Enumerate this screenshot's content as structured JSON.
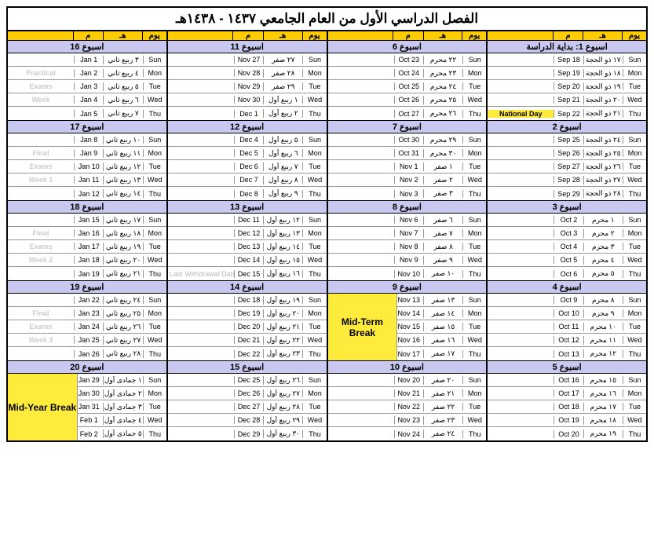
{
  "title": "الفصل الدراسي الأول من العام الجامعي ١٤٣٧ - ١٤٣٨هـ",
  "col_headers": {
    "c1": "",
    "c2": "م",
    "c3": "هـ",
    "c4": "يوم"
  },
  "days": [
    "Sun",
    "Mon",
    "Tue",
    "Wed",
    "Thu"
  ],
  "columns": [
    {
      "blocks": [
        {
          "header": "اسبوع 1: بداية الدراسة",
          "rows": [
            {
              "lbl": "",
              "g": "Sep 18",
              "h": "١٧ ذو الحجة",
              "d": "Sun"
            },
            {
              "lbl": "",
              "g": "Sep 19",
              "h": "١٨ ذو الحجة",
              "d": "Mon"
            },
            {
              "lbl": "",
              "g": "Sep 20",
              "h": "١٩ ذو الحجة",
              "d": "Tue"
            },
            {
              "lbl": "",
              "g": "Sep 21",
              "h": "٢٠ ذو الحجة",
              "d": "Wed"
            },
            {
              "lbl": "National Day",
              "g": "Sep 22",
              "h": "٢١ ذو الحجة",
              "d": "Thu",
              "hl": true
            }
          ]
        },
        {
          "header": "اسبوع 2",
          "rows": [
            {
              "lbl": "",
              "g": "Sep 25",
              "h": "٢٤ ذو الحجة",
              "d": "Sun"
            },
            {
              "lbl": "",
              "g": "Sep 26",
              "h": "٢٥ ذو الحجة",
              "d": "Mon"
            },
            {
              "lbl": "",
              "g": "Sep 27",
              "h": "٢٦ ذو الحجة",
              "d": "Tue"
            },
            {
              "lbl": "",
              "g": "Sep 28",
              "h": "٢٧ ذو الحجة",
              "d": "Wed"
            },
            {
              "lbl": "",
              "g": "Sep 29",
              "h": "٢٨ ذو الحجة",
              "d": "Thu"
            }
          ]
        },
        {
          "header": "اسبوع 3",
          "rows": [
            {
              "lbl": "",
              "g": "Oct 2",
              "h": "١ محرم",
              "d": "Sun"
            },
            {
              "lbl": "",
              "g": "Oct 3",
              "h": "٢ محرم",
              "d": "Mon"
            },
            {
              "lbl": "",
              "g": "Oct 4",
              "h": "٣ محرم",
              "d": "Tue"
            },
            {
              "lbl": "",
              "g": "Oct 5",
              "h": "٤ محرم",
              "d": "Wed"
            },
            {
              "lbl": "",
              "g": "Oct 6",
              "h": "٥ محرم",
              "d": "Thu"
            }
          ]
        },
        {
          "header": "اسبوع 4",
          "rows": [
            {
              "lbl": "",
              "g": "Oct 9",
              "h": "٨ محرم",
              "d": "Sun"
            },
            {
              "lbl": "",
              "g": "Oct 10",
              "h": "٩ محرم",
              "d": "Mon"
            },
            {
              "lbl": "",
              "g": "Oct 11",
              "h": "١٠ محرم",
              "d": "Tue"
            },
            {
              "lbl": "",
              "g": "Oct 12",
              "h": "١١ محرم",
              "d": "Wed"
            },
            {
              "lbl": "",
              "g": "Oct 13",
              "h": "١٢ محرم",
              "d": "Thu"
            }
          ]
        },
        {
          "header": "اسبوع 5",
          "rows": [
            {
              "lbl": "",
              "g": "Oct 16",
              "h": "١٥ محرم",
              "d": "Sun"
            },
            {
              "lbl": "",
              "g": "Oct 17",
              "h": "١٦ محرم",
              "d": "Mon"
            },
            {
              "lbl": "",
              "g": "Oct 18",
              "h": "١٧ محرم",
              "d": "Tue"
            },
            {
              "lbl": "",
              "g": "Oct 19",
              "h": "١٨ محرم",
              "d": "Wed"
            },
            {
              "lbl": "",
              "g": "Oct 20",
              "h": "١٩ محرم",
              "d": "Thu"
            }
          ]
        }
      ]
    },
    {
      "blocks": [
        {
          "header": "اسبوع 6",
          "rows": [
            {
              "lbl": "",
              "g": "Oct 23",
              "h": "٢٢ محرم",
              "d": "Sun"
            },
            {
              "lbl": "",
              "g": "Oct 24",
              "h": "٢٣ محرم",
              "d": "Mon"
            },
            {
              "lbl": "",
              "g": "Oct 25",
              "h": "٢٤ محرم",
              "d": "Tue"
            },
            {
              "lbl": "",
              "g": "Oct 26",
              "h": "٢٥ محرم",
              "d": "Wed"
            },
            {
              "lbl": "",
              "g": "Oct 27",
              "h": "٢٦ محرم",
              "d": "Thu"
            }
          ]
        },
        {
          "header": "اسبوع 7",
          "rows": [
            {
              "lbl": "",
              "g": "Oct 30",
              "h": "٢٩ محرم",
              "d": "Sun"
            },
            {
              "lbl": "",
              "g": "Oct 31",
              "h": "٣٠ محرم",
              "d": "Mon"
            },
            {
              "lbl": "",
              "g": "Nov 1",
              "h": "١ صفر",
              "d": "Tue"
            },
            {
              "lbl": "",
              "g": "Nov 2",
              "h": "٢ صفر",
              "d": "Wed"
            },
            {
              "lbl": "",
              "g": "Nov 3",
              "h": "٣ صفر",
              "d": "Thu"
            }
          ]
        },
        {
          "header": "اسبوع 8",
          "rows": [
            {
              "lbl": "",
              "g": "Nov 6",
              "h": "٦ صفر",
              "d": "Sun"
            },
            {
              "lbl": "",
              "g": "Nov 7",
              "h": "٧ صفر",
              "d": "Mon"
            },
            {
              "lbl": "",
              "g": "Nov 8",
              "h": "٨ صفر",
              "d": "Tue"
            },
            {
              "lbl": "",
              "g": "Nov 9",
              "h": "٩ صفر",
              "d": "Wed"
            },
            {
              "lbl": "",
              "g": "Nov 10",
              "h": "١٠ صفر",
              "d": "Thu"
            }
          ]
        },
        {
          "header": "اسبوع 9",
          "big": "Mid-Term Break",
          "rows": [
            {
              "lbl": "",
              "g": "Nov 13",
              "h": "١٣ صفر",
              "d": "Sun"
            },
            {
              "lbl": "",
              "g": "Nov 14",
              "h": "١٤ صفر",
              "d": "Mon"
            },
            {
              "lbl": "",
              "g": "Nov 15",
              "h": "١٥ صفر",
              "d": "Tue"
            },
            {
              "lbl": "",
              "g": "Nov 16",
              "h": "١٦ صفر",
              "d": "Wed"
            },
            {
              "lbl": "",
              "g": "Nov 17",
              "h": "١٧ صفر",
              "d": "Thu"
            }
          ]
        },
        {
          "header": "اسبوع 10",
          "rows": [
            {
              "lbl": "",
              "g": "Nov 20",
              "h": "٢٠ صفر",
              "d": "Sun"
            },
            {
              "lbl": "",
              "g": "Nov 21",
              "h": "٢١ صفر",
              "d": "Mon"
            },
            {
              "lbl": "",
              "g": "Nov 22",
              "h": "٢٢ صفر",
              "d": "Tue"
            },
            {
              "lbl": "",
              "g": "Nov 23",
              "h": "٢٣ صفر",
              "d": "Wed"
            },
            {
              "lbl": "",
              "g": "Nov 24",
              "h": "٢٤ صفر",
              "d": "Thu"
            }
          ]
        }
      ]
    },
    {
      "blocks": [
        {
          "header": "اسبوع 11",
          "rows": [
            {
              "lbl": "",
              "g": "Nov 27",
              "h": "٢٧ صفر",
              "d": "Sun"
            },
            {
              "lbl": "",
              "g": "Nov 28",
              "h": "٢٨ صفر",
              "d": "Mon"
            },
            {
              "lbl": "",
              "g": "Nov 29",
              "h": "٢٩ صفر",
              "d": "Tue"
            },
            {
              "lbl": "",
              "g": "Nov 30",
              "h": "١ ربيع أول",
              "d": "Wed"
            },
            {
              "lbl": "",
              "g": "Dec 1",
              "h": "٢ ربيع أول",
              "d": "Thu"
            }
          ]
        },
        {
          "header": "اسبوع 12",
          "rows": [
            {
              "lbl": "",
              "g": "Dec 4",
              "h": "٥ ربيع أول",
              "d": "Sun"
            },
            {
              "lbl": "",
              "g": "Dec 5",
              "h": "٦ ربيع أول",
              "d": "Mon"
            },
            {
              "lbl": "",
              "g": "Dec 6",
              "h": "٧ ربيع أول",
              "d": "Tue"
            },
            {
              "lbl": "",
              "g": "Dec 7",
              "h": "٨ ربيع أول",
              "d": "Wed"
            },
            {
              "lbl": "",
              "g": "Dec 8",
              "h": "٩ ربيع أول",
              "d": "Thu"
            }
          ]
        },
        {
          "header": "اسبوع 13",
          "rows": [
            {
              "lbl": "",
              "g": "Dec 11",
              "h": "١٢ ربيع أول",
              "d": "Sun"
            },
            {
              "lbl": "",
              "g": "Dec 12",
              "h": "١٣ ربيع أول",
              "d": "Mon"
            },
            {
              "lbl": "",
              "g": "Dec 13",
              "h": "١٤ ربيع أول",
              "d": "Tue"
            },
            {
              "lbl": "",
              "g": "Dec 14",
              "h": "١٥ ربيع أول",
              "d": "Wed"
            },
            {
              "lbl": "Last Withdrawal Date",
              "g": "Dec 15",
              "h": "١٦ ربيع أول",
              "d": "Thu",
              "faded": true
            }
          ]
        },
        {
          "header": "اسبوع 14",
          "rows": [
            {
              "lbl": "",
              "g": "Dec 18",
              "h": "١٩ ربيع أول",
              "d": "Sun"
            },
            {
              "lbl": "",
              "g": "Dec 19",
              "h": "٢٠ ربيع أول",
              "d": "Mon"
            },
            {
              "lbl": "",
              "g": "Dec 20",
              "h": "٢١ ربيع أول",
              "d": "Tue"
            },
            {
              "lbl": "",
              "g": "Dec 21",
              "h": "٢٢ ربيع أول",
              "d": "Wed"
            },
            {
              "lbl": "",
              "g": "Dec 22",
              "h": "٢٣ ربيع أول",
              "d": "Thu"
            }
          ]
        },
        {
          "header": "اسبوع 15",
          "rows": [
            {
              "lbl": "",
              "g": "Dec 25",
              "h": "٢٦ ربيع أول",
              "d": "Sun"
            },
            {
              "lbl": "",
              "g": "Dec 26",
              "h": "٢٧ ربيع أول",
              "d": "Mon"
            },
            {
              "lbl": "",
              "g": "Dec 27",
              "h": "٢٨ ربيع أول",
              "d": "Tue"
            },
            {
              "lbl": "",
              "g": "Dec 28",
              "h": "٢٩ ربيع أول",
              "d": "Wed"
            },
            {
              "lbl": "",
              "g": "Dec 29",
              "h": "٣٠ ربيع أول",
              "d": "Thu"
            }
          ]
        }
      ]
    },
    {
      "blocks": [
        {
          "header": "اسبوع 16",
          "rows": [
            {
              "lbl": "",
              "g": "Jan 1",
              "h": "٣ ربيع ثاني",
              "d": "Sun",
              "wm": ""
            },
            {
              "lbl": "Practical",
              "g": "Jan 2",
              "h": "٤ ربيع ثاني",
              "d": "Mon",
              "wm": "1"
            },
            {
              "lbl": "Exams",
              "g": "Jan 3",
              "h": "٥ ربيع ثاني",
              "d": "Tue",
              "wm": "1"
            },
            {
              "lbl": "Week",
              "g": "Jan 4",
              "h": "٦ ربيع ثاني",
              "d": "Wed",
              "wm": "1"
            },
            {
              "lbl": "",
              "g": "Jan 5",
              "h": "٧ ربيع ثاني",
              "d": "Thu"
            }
          ]
        },
        {
          "header": "اسبوع 17",
          "rows": [
            {
              "lbl": "",
              "g": "Jan 8",
              "h": "١٠ ربيع ثاني",
              "d": "Sun"
            },
            {
              "lbl": "Final",
              "g": "Jan 9",
              "h": "١١ ربيع ثاني",
              "d": "Mon",
              "wm": "1"
            },
            {
              "lbl": "Exams",
              "g": "Jan 10",
              "h": "١٢ ربيع ثاني",
              "d": "Tue",
              "wm": "1"
            },
            {
              "lbl": "Week 1",
              "g": "Jan 11",
              "h": "١٣ ربيع ثاني",
              "d": "Wed",
              "wm": "1"
            },
            {
              "lbl": "",
              "g": "Jan 12",
              "h": "١٤ ربيع ثاني",
              "d": "Thu"
            }
          ]
        },
        {
          "header": "اسبوع 18",
          "rows": [
            {
              "lbl": "",
              "g": "Jan 15",
              "h": "١٧ ربيع ثاني",
              "d": "Sun"
            },
            {
              "lbl": "Final",
              "g": "Jan 16",
              "h": "١٨ ربيع ثاني",
              "d": "Mon",
              "wm": "1"
            },
            {
              "lbl": "Exams",
              "g": "Jan 17",
              "h": "١٩ ربيع ثاني",
              "d": "Tue",
              "wm": "1"
            },
            {
              "lbl": "Week 2",
              "g": "Jan 18",
              "h": "٢٠ ربيع ثاني",
              "d": "Wed",
              "wm": "1"
            },
            {
              "lbl": "",
              "g": "Jan 19",
              "h": "٢١ ربيع ثاني",
              "d": "Thu"
            }
          ]
        },
        {
          "header": "اسبوع 19",
          "rows": [
            {
              "lbl": "",
              "g": "Jan 22",
              "h": "٢٤ ربيع ثاني",
              "d": "Sun"
            },
            {
              "lbl": "Final",
              "g": "Jan 23",
              "h": "٢٥ ربيع ثاني",
              "d": "Mon",
              "wm": "1"
            },
            {
              "lbl": "Exams",
              "g": "Jan 24",
              "h": "٢٦ ربيع ثاني",
              "d": "Tue",
              "wm": "1"
            },
            {
              "lbl": "Week 3",
              "g": "Jan 25",
              "h": "٢٧ ربيع ثاني",
              "d": "Wed",
              "wm": "1"
            },
            {
              "lbl": "",
              "g": "Jan 26",
              "h": "٢٨ ربيع ثاني",
              "d": "Thu"
            }
          ]
        },
        {
          "header": "اسبوع 20",
          "big": "Mid-Year Break",
          "rows": [
            {
              "lbl": "",
              "g": "Jan 29",
              "h": "١ جمادى أول",
              "d": "Sun"
            },
            {
              "lbl": "",
              "g": "Jan 30",
              "h": "٢ جمادى أول",
              "d": "Mon"
            },
            {
              "lbl": "",
              "g": "Jan 31",
              "h": "٣ جمادى أول",
              "d": "Tue"
            },
            {
              "lbl": "",
              "g": "Feb 1",
              "h": "٤ جمادى أول",
              "d": "Wed"
            },
            {
              "lbl": "",
              "g": "Feb 2",
              "h": "٥ جمادى أول",
              "d": "Thu"
            }
          ]
        }
      ]
    }
  ]
}
